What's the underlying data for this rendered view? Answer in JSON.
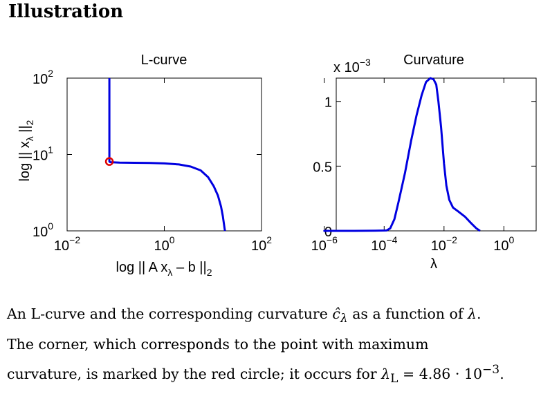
{
  "page": {
    "heading": "Illustration"
  },
  "chart_data": [
    {
      "type": "line",
      "title": "L-curve",
      "xlabel": "log || A x_λ − b ||_2",
      "ylabel": "log || x_λ ||_2",
      "xscale": "log",
      "yscale": "log",
      "xlim": [
        0.01,
        100
      ],
      "ylim": [
        1,
        100
      ],
      "x_ticks": [
        {
          "base": "10",
          "exp": "−2",
          "value": 0.01
        },
        {
          "base": "10",
          "exp": "0",
          "value": 1
        },
        {
          "base": "10",
          "exp": "2",
          "value": 100
        }
      ],
      "y_ticks": [
        {
          "base": "10",
          "exp": "0",
          "value": 1
        },
        {
          "base": "10",
          "exp": "1",
          "value": 10
        },
        {
          "base": "10",
          "exp": "2",
          "value": 100
        }
      ],
      "series": [
        {
          "color": "#0000e0",
          "x": [
            0.074,
            0.074,
            0.074,
            0.074,
            0.077,
            0.12,
            0.24,
            0.5,
            1.0,
            2.0,
            3.5,
            5.6,
            8.0,
            10.4,
            12.7,
            14.7,
            16.0,
            16.8,
            17.4,
            17.7
          ],
          "y": [
            100,
            30,
            12,
            8.09,
            7.94,
            7.83,
            7.79,
            7.74,
            7.64,
            7.41,
            6.95,
            6.19,
            5.04,
            3.85,
            2.9,
            2.08,
            1.56,
            1.25,
            1.08,
            1.0
          ]
        }
      ],
      "marker": {
        "label": "corner",
        "x": 0.074,
        "y": 8.09,
        "color": "#e00000"
      }
    },
    {
      "type": "line",
      "title": "Curvature",
      "xlabel": "λ",
      "ylabel": "",
      "xscale": "log",
      "scale_factor": {
        "base": "x 10",
        "exp": "−3"
      },
      "xlim": [
        2.5e-06,
        12
      ],
      "ylim": [
        0,
        1.18
      ],
      "x_ticks": [
        {
          "base": "10",
          "exp": "−6",
          "value": 1e-06
        },
        {
          "base": "10",
          "exp": "−4",
          "value": 0.0001
        },
        {
          "base": "10",
          "exp": "−2",
          "value": 0.01
        },
        {
          "base": "10",
          "exp": "0",
          "value": 1
        }
      ],
      "y_ticks": [
        {
          "label": "0",
          "value": 0
        },
        {
          "label": "0.5",
          "value": 0.5
        },
        {
          "label": "1",
          "value": 1
        }
      ],
      "series": [
        {
          "color": "#0000e0",
          "x": [
            2.5e-06,
            1e-06,
            1e-05,
            5e-05,
            0.00012,
            0.00016,
            0.00022,
            0.0003,
            0.0005,
            0.0008,
            0.0012,
            0.0018,
            0.0025,
            0.0035,
            0.0045,
            0.0055,
            0.0065,
            0.008,
            0.01,
            0.012,
            0.015,
            0.02,
            0.03,
            0.05,
            0.08,
            0.12,
            0.16
          ],
          "y": [
            0,
            0,
            0,
            0.001,
            0.003,
            0.02,
            0.09,
            0.22,
            0.45,
            0.7,
            0.89,
            1.05,
            1.15,
            1.18,
            1.17,
            1.13,
            1.0,
            0.8,
            0.52,
            0.35,
            0.24,
            0.18,
            0.15,
            0.11,
            0.06,
            0.02,
            0.0
          ]
        }
      ]
    }
  ],
  "caption": {
    "line1": [
      "An L-curve and the corresponding curvature ",
      "ĉ",
      "λ",
      " as a function of ",
      "λ",
      "."
    ],
    "line2": "The corner, which corresponds to the point with maximum",
    "line3": [
      "curvature, is marked by the red circle; it occurs for ",
      "λ",
      "L",
      " = 4.86 · 10",
      "−3",
      "."
    ]
  }
}
